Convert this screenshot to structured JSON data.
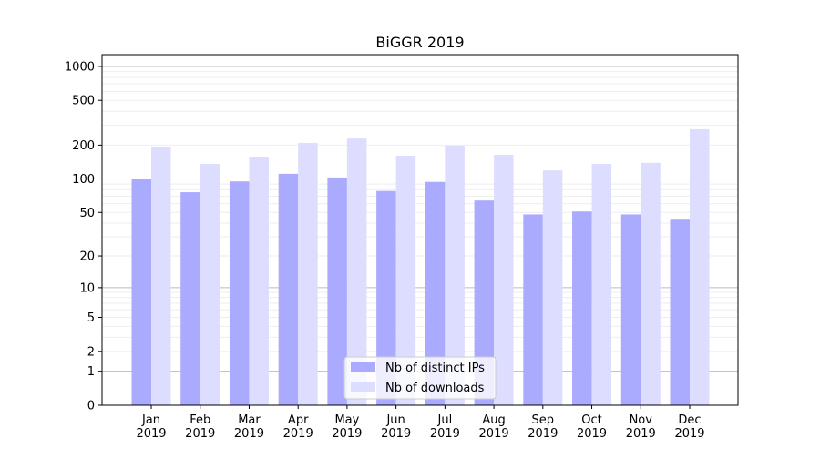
{
  "chart_data": {
    "type": "bar",
    "title": "BiGGR 2019",
    "xlabel": "",
    "ylabel": "",
    "yscale": "symlog (log10(1+y))",
    "ylim": [
      0,
      1300
    ],
    "yticks": [
      0,
      1,
      2,
      5,
      10,
      20,
      50,
      100,
      200,
      500,
      1000
    ],
    "grid": "horizontal",
    "legend_position": "bottom-center",
    "categories": [
      "Jan\n2019",
      "Feb\n2019",
      "Mar\n2019",
      "Apr\n2019",
      "May\n2019",
      "Jun\n2019",
      "Jul\n2019",
      "Aug\n2019",
      "Sep\n2019",
      "Oct\n2019",
      "Nov\n2019",
      "Dec\n2019"
    ],
    "series": [
      {
        "name": "Nb of distinct IPs",
        "color": "#aaaaff",
        "values": [
          100,
          76,
          95,
          111,
          103,
          78,
          94,
          64,
          48,
          51,
          48,
          43
        ]
      },
      {
        "name": "Nb of downloads",
        "color": "#ddddff",
        "values": [
          194,
          136,
          158,
          209,
          229,
          161,
          198,
          164,
          119,
          136,
          139,
          277
        ]
      }
    ]
  }
}
